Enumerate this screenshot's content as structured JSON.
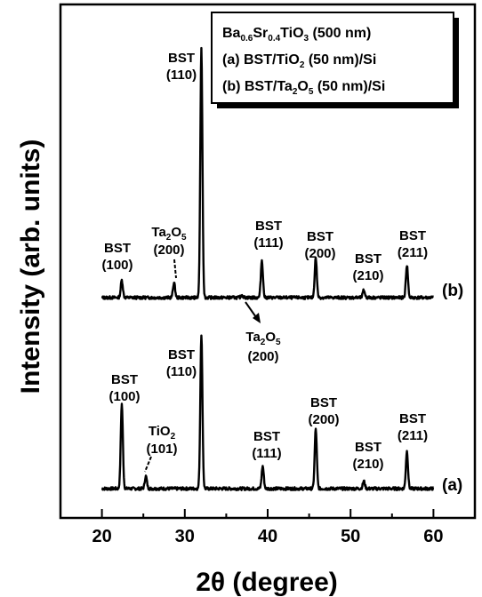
{
  "chart_data": {
    "type": "line",
    "xlabel": "2θ (degree)",
    "ylabel": "Intensity (arb. units)",
    "xlim": [
      15,
      65
    ],
    "xticks": [
      "20",
      "30",
      "40",
      "50",
      "60"
    ],
    "yticks": "none",
    "grid": false,
    "legend_position": "top-right",
    "legend": [
      {
        "base": "Ba",
        "sub1": "0.6",
        "mid": "Sr",
        "sub2": "0.4",
        "tail": "TiO",
        "sub3": "3",
        "end": " (500 nm)"
      },
      {
        "pre": "(a) BST/TiO",
        "sub": "2",
        "post": " (50 nm)/Si"
      },
      {
        "pre": "(b) BST/Ta",
        "sub": "2",
        "mid": "O",
        "sub2": "5",
        "post": " (50 nm)/Si"
      }
    ],
    "series": [
      {
        "name": "(a)",
        "baseline": 0,
        "peaks": [
          {
            "x": 22.4,
            "height": 0.34
          },
          {
            "x": 25.3,
            "height": 0.05
          },
          {
            "x": 32.0,
            "height": 0.62
          },
          {
            "x": 39.4,
            "height": 0.09
          },
          {
            "x": 45.8,
            "height": 0.24
          },
          {
            "x": 51.6,
            "height": 0.03
          },
          {
            "x": 56.8,
            "height": 0.15
          }
        ]
      },
      {
        "name": "(b)",
        "baseline": 1,
        "peaks": [
          {
            "x": 22.4,
            "height": 0.07
          },
          {
            "x": 28.7,
            "height": 0.06
          },
          {
            "x": 32.0,
            "height": 1.0
          },
          {
            "x": 36.9,
            "height": 0.01
          },
          {
            "x": 39.3,
            "height": 0.15
          },
          {
            "x": 45.8,
            "height": 0.16
          },
          {
            "x": 51.6,
            "height": 0.03
          },
          {
            "x": 56.8,
            "height": 0.13
          }
        ]
      }
    ],
    "annotations": [
      {
        "id": "a-bst100",
        "l1": "BST",
        "l2": "(100)"
      },
      {
        "id": "a-tio2",
        "l1": "TiO",
        "sub": "2",
        "l2": "(101)"
      },
      {
        "id": "a-bst110",
        "l1": "BST",
        "l2": "(110)"
      },
      {
        "id": "a-bst111",
        "l1": "BST",
        "l2": "(111)"
      },
      {
        "id": "a-bst200",
        "l1": "BST",
        "l2": "(200)"
      },
      {
        "id": "a-bst210",
        "l1": "BST",
        "l2": "(210)"
      },
      {
        "id": "a-bst211",
        "l1": "BST",
        "l2": "(211)"
      },
      {
        "id": "b-bst100",
        "l1": "BST",
        "l2": "(100)"
      },
      {
        "id": "b-ta2o5",
        "l1": "Ta",
        "sub": "2",
        "l1b": "O",
        "sub2": "5",
        "l2": "(200)"
      },
      {
        "id": "b-bst110",
        "l1": "BST",
        "l2": "(110)"
      },
      {
        "id": "b-bst111",
        "l1": "BST",
        "l2": "(111)"
      },
      {
        "id": "b-bst200",
        "l1": "BST",
        "l2": "(200)"
      },
      {
        "id": "b-bst210",
        "l1": "BST",
        "l2": "(210)"
      },
      {
        "id": "b-bst211",
        "l1": "BST",
        "l2": "(211)"
      },
      {
        "id": "mid-ta2o5",
        "l1": "Ta",
        "sub": "2",
        "l1b": "O",
        "sub2": "5",
        "l2": "(200)"
      }
    ]
  }
}
